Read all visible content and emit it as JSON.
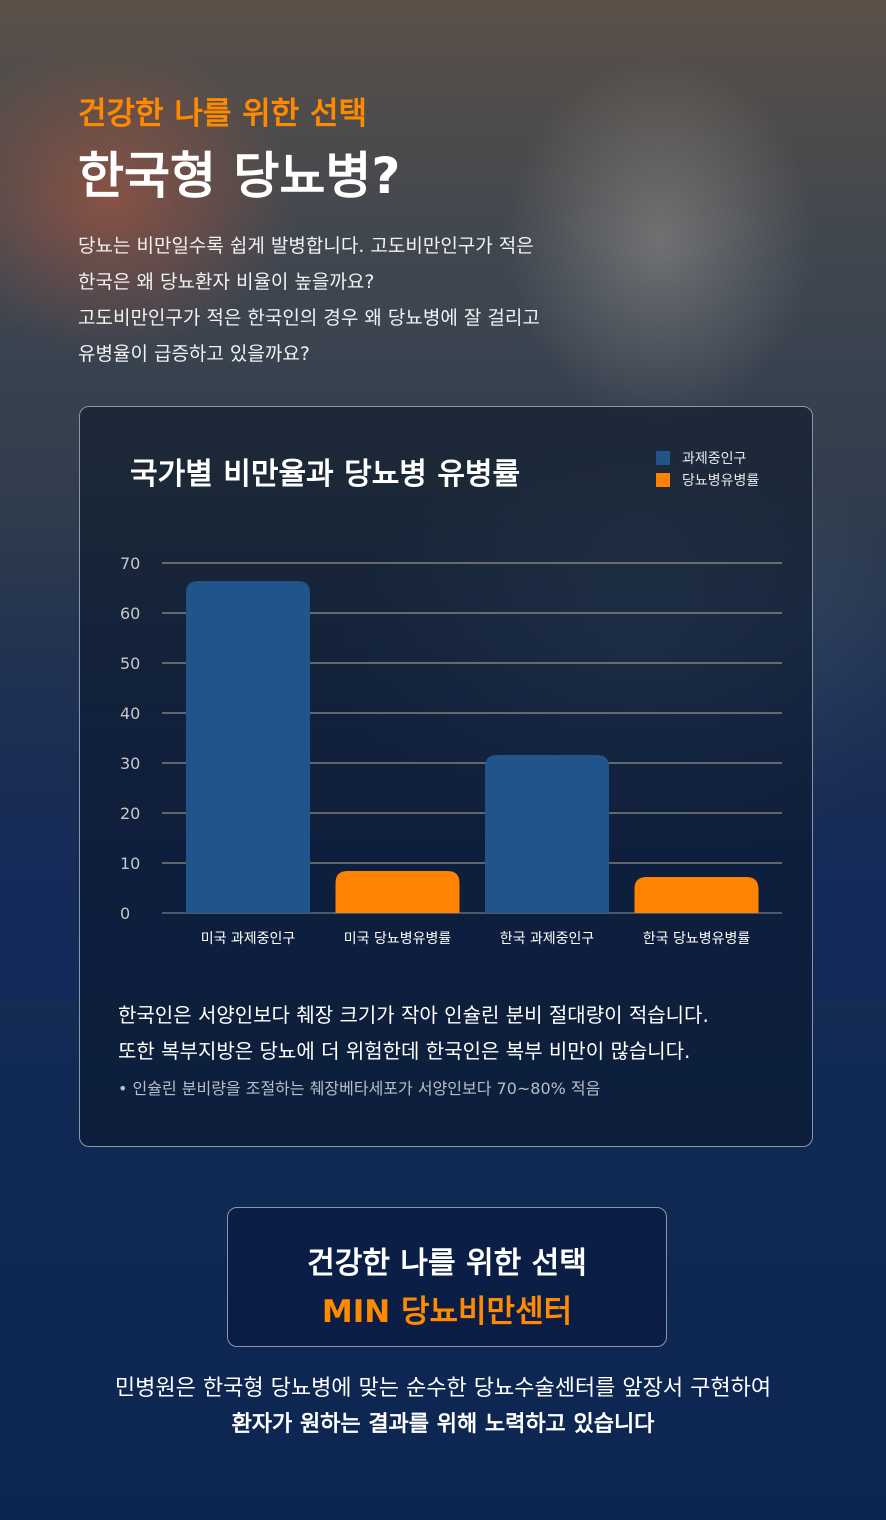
{
  "header": {
    "subtitle": "건강한 나를 위한 선택",
    "title": "한국형 당뇨병?"
  },
  "intro": [
    "당뇨는 비만일수록 쉽게 발병합니다. 고도비만인구가 적은",
    "한국은 왜 당뇨환자 비율이 높을까요?",
    "고도비만인구가 적은 한국인의 경우 왜 당뇨병에 잘 걸리고",
    "유병율이 급증하고 있을까요?"
  ],
  "chart_data": {
    "type": "bar",
    "title": "국가별 비만율과 당뇨병 유병률",
    "legend": [
      {
        "name": "과제중인구",
        "color": "#21548b"
      },
      {
        "name": "당뇨병유병률",
        "color": "#ff8200"
      }
    ],
    "legend_placement": "top-right",
    "categories": [
      "미국 과제중인구",
      "미국 당뇨병유병률",
      "한국 과제중인구",
      "한국 당뇨병유병률"
    ],
    "values": [
      66.4,
      8.4,
      31.6,
      7.2
    ],
    "colors": [
      "#21548b",
      "#ff8200",
      "#21548b",
      "#ff8200"
    ],
    "ylim": [
      0,
      70
    ],
    "yticks": [
      0,
      10,
      20,
      30,
      40,
      50,
      60,
      70
    ],
    "grid": true
  },
  "notes": {
    "line1": "한국인은 서양인보다 췌장 크기가 작아 인슐린 분비 절대량이 적습니다.",
    "line2": "또한 복부지방은 당뇨에 더 위험한데 한국인은 복부 비만이 많습니다.",
    "bullet": "• 인슐린 분비량을 조절하는 췌장베타세포가 서양인보다 70~80% 적음"
  },
  "cta": {
    "line1": "건강한 나를 위한 선택",
    "line2": "MIN 당뇨비만센터"
  },
  "footer": {
    "line1": "민병원은 한국형 당뇨병에 맞는 순수한 당뇨수술센터를 앞장서 구현하여",
    "line2": "환자가 원하는 결과를 위해 노력하고 있습니다"
  }
}
